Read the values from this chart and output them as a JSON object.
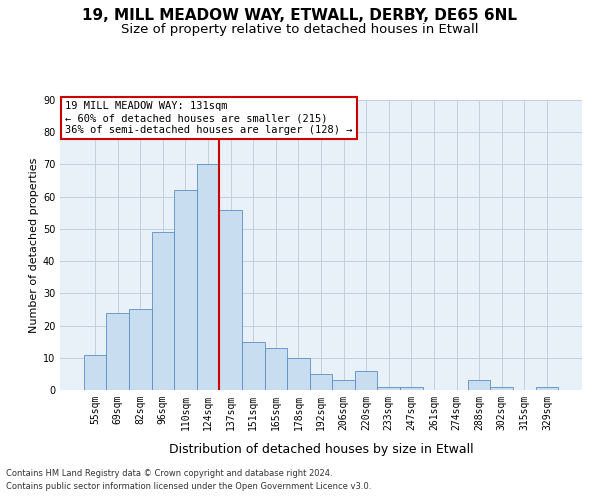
{
  "title": "19, MILL MEADOW WAY, ETWALL, DERBY, DE65 6NL",
  "subtitle": "Size of property relative to detached houses in Etwall",
  "xlabel": "Distribution of detached houses by size in Etwall",
  "ylabel": "Number of detached properties",
  "categories": [
    "55sqm",
    "69sqm",
    "82sqm",
    "96sqm",
    "110sqm",
    "124sqm",
    "137sqm",
    "151sqm",
    "165sqm",
    "178sqm",
    "192sqm",
    "206sqm",
    "220sqm",
    "233sqm",
    "247sqm",
    "261sqm",
    "274sqm",
    "288sqm",
    "302sqm",
    "315sqm",
    "329sqm"
  ],
  "values": [
    11,
    24,
    25,
    49,
    62,
    70,
    56,
    15,
    13,
    10,
    5,
    3,
    6,
    1,
    1,
    0,
    0,
    3,
    1,
    0,
    1
  ],
  "bar_color": "#c9ddf0",
  "bar_edge_color": "#5b8ec4",
  "vline_color": "#cc0000",
  "vline_index": 6,
  "ylim": [
    0,
    90
  ],
  "yticks": [
    0,
    10,
    20,
    30,
    40,
    50,
    60,
    70,
    80,
    90
  ],
  "annotation_line1": "19 MILL MEADOW WAY: 131sqm",
  "annotation_line2": "← 60% of detached houses are smaller (215)",
  "annotation_line3": "36% of semi-detached houses are larger (128) →",
  "annotation_box_color": "#ffffff",
  "annotation_box_edge": "#cc0000",
  "footer1": "Contains HM Land Registry data © Crown copyright and database right 2024.",
  "footer2": "Contains public sector information licensed under the Open Government Licence v3.0.",
  "background_color": "#ffffff",
  "plot_bg_color": "#e8f0f8",
  "grid_color": "#c0d0e0",
  "title_fontsize": 11,
  "subtitle_fontsize": 9.5,
  "xlabel_fontsize": 9,
  "ylabel_fontsize": 8,
  "tick_fontsize": 7,
  "footer_fontsize": 6
}
